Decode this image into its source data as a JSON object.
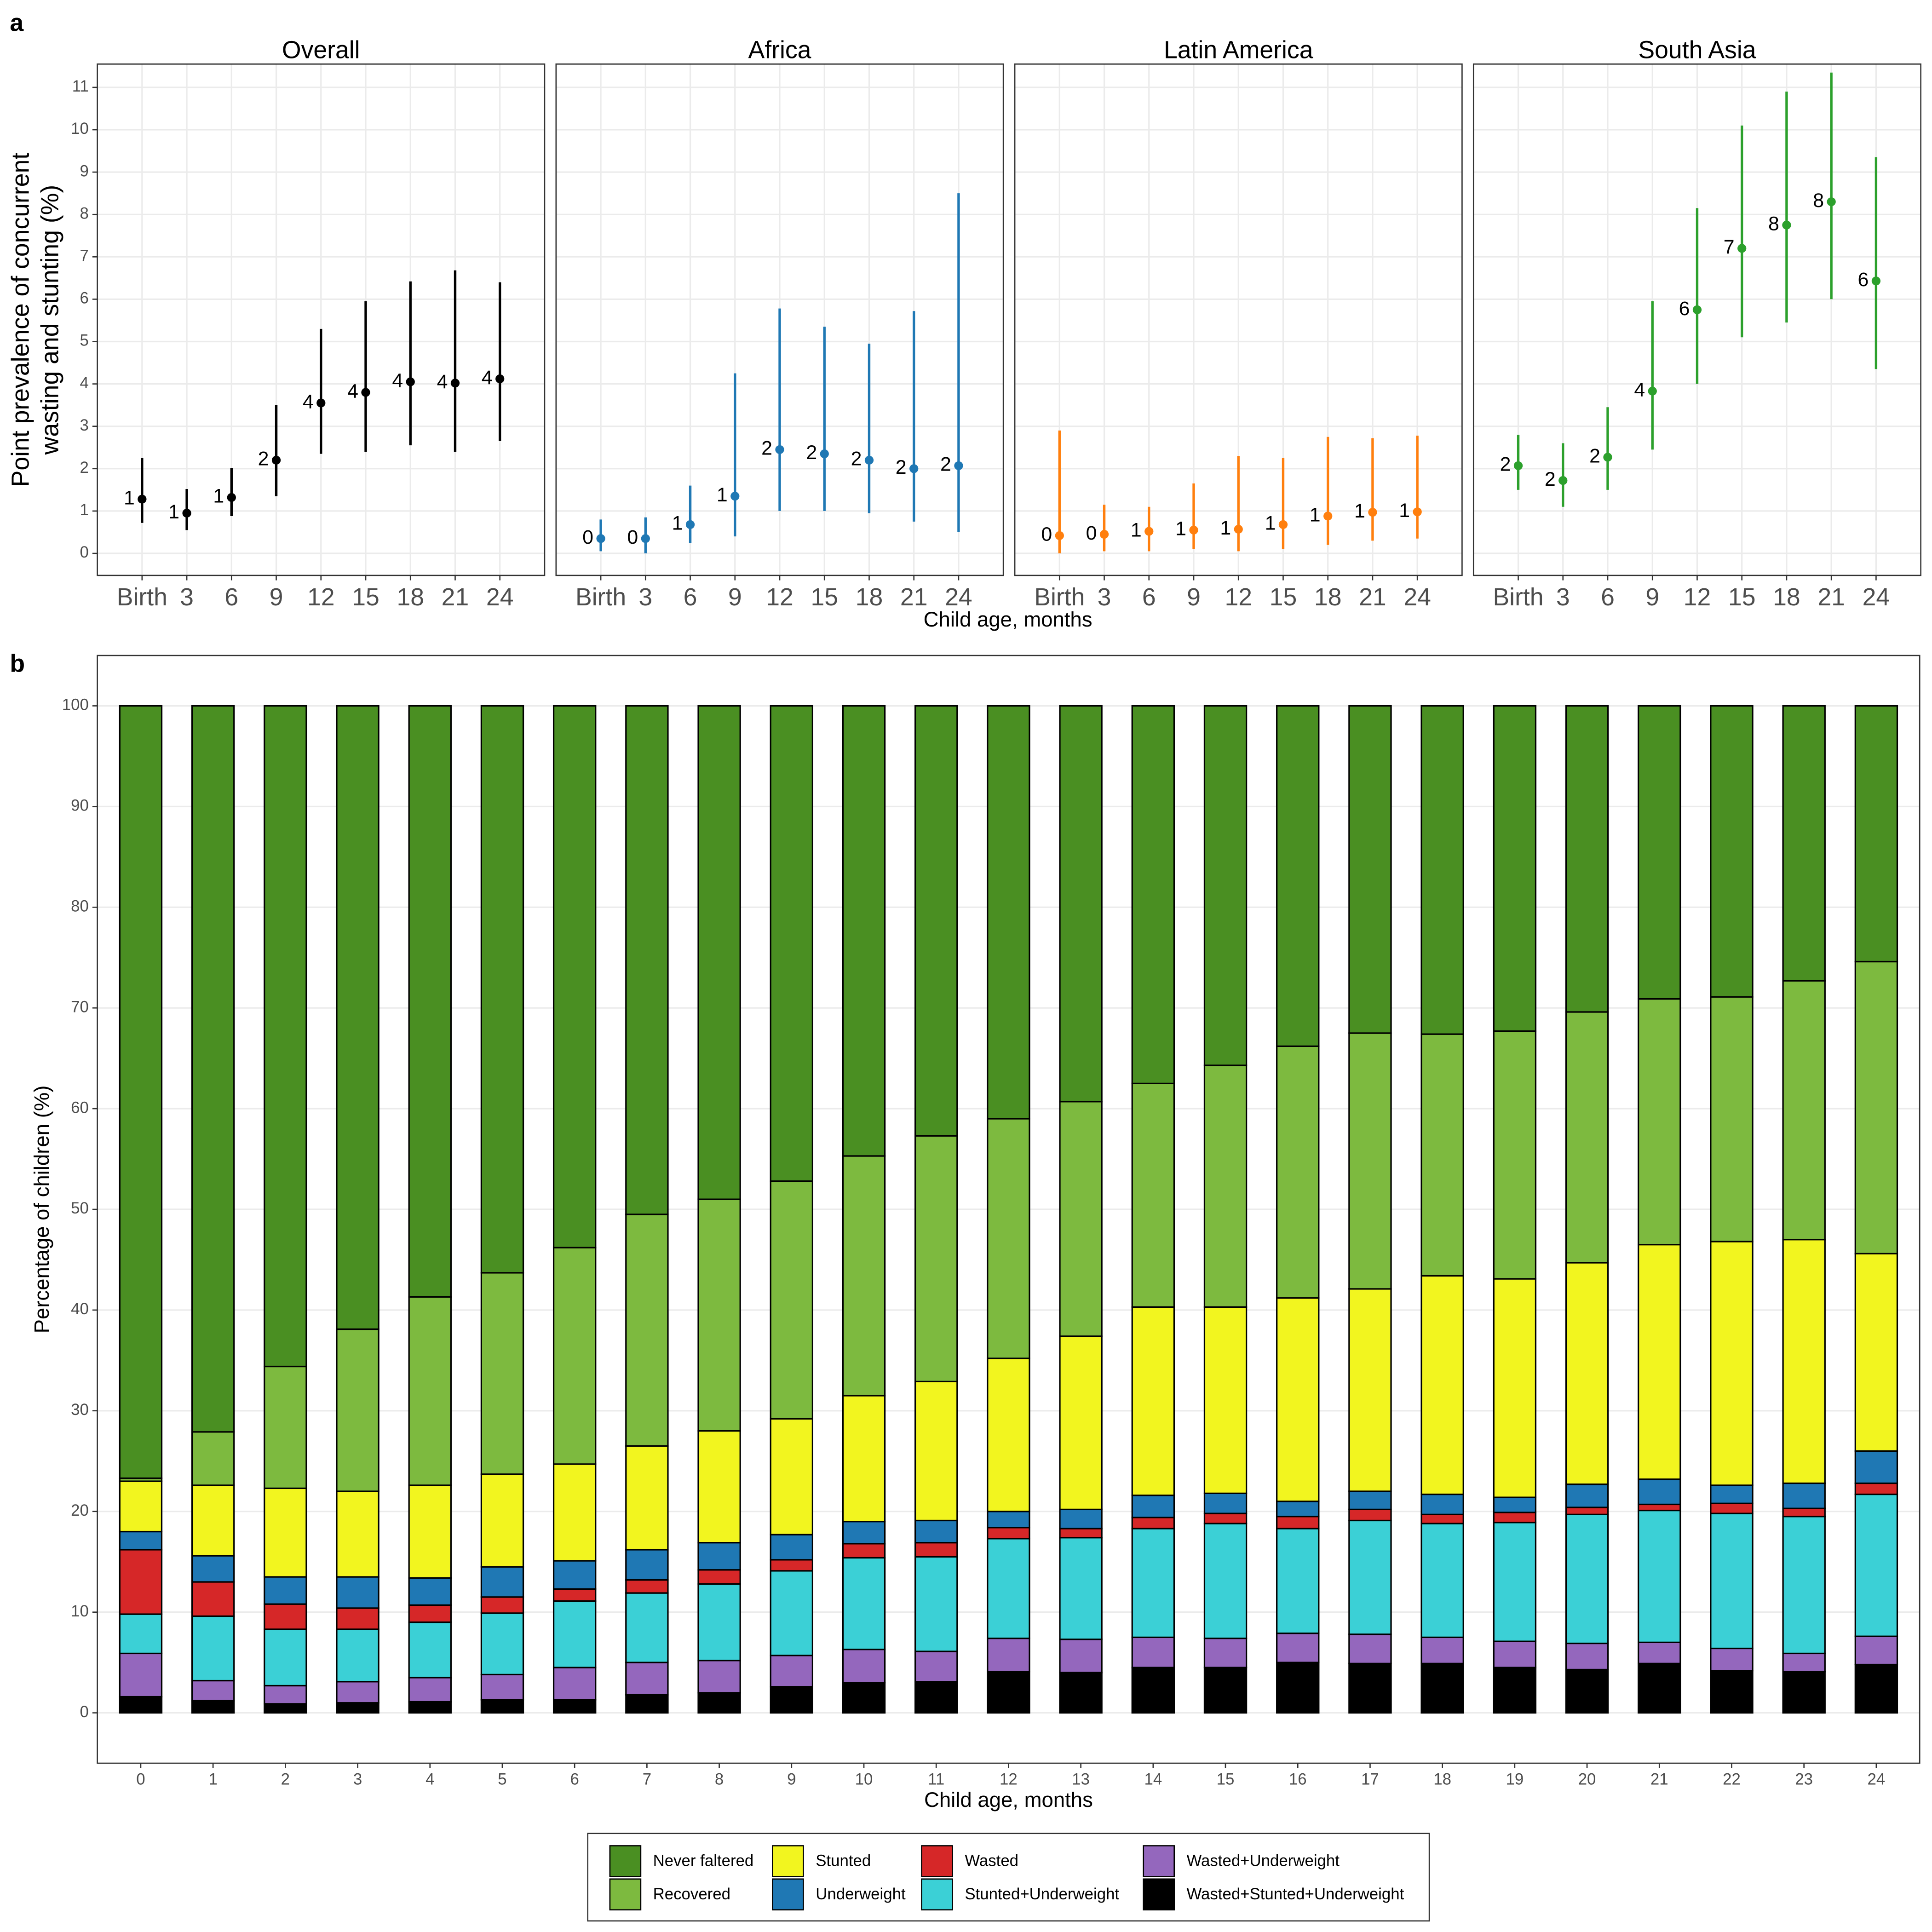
{
  "chart_data": [
    {
      "type": "pointrange",
      "tag": "a",
      "title": "Overall",
      "color": "#000000",
      "xlabel": "Child age, months",
      "ylabel": [
        "Point prevalence of concurrent",
        "wasting and stunting (%)"
      ],
      "x": [
        0,
        3,
        6,
        9,
        12,
        15,
        18,
        21,
        24
      ],
      "values": [
        1.28,
        0.95,
        1.32,
        2.2,
        3.55,
        3.8,
        4.05,
        4.02,
        4.12
      ],
      "lower": [
        0.72,
        0.55,
        0.88,
        1.35,
        2.35,
        2.4,
        2.55,
        2.4,
        2.65
      ],
      "upper": [
        2.25,
        1.52,
        2.02,
        3.5,
        5.3,
        5.95,
        6.42,
        6.68,
        6.4
      ],
      "value_labels": [
        "1",
        "1",
        "1",
        "2",
        "4",
        "4",
        "4",
        "4",
        "4"
      ],
      "xlim": [
        -3,
        27
      ],
      "ylim": [
        -0.52,
        11.55
      ],
      "xticks": [
        {
          "value": 0,
          "label": "Birth"
        },
        3,
        6,
        9,
        12,
        15,
        18,
        21,
        24
      ],
      "yticks": [
        0,
        1,
        2,
        3,
        4,
        5,
        6,
        7,
        8,
        9,
        10,
        11
      ],
      "grid": true
    },
    {
      "type": "pointrange",
      "title": "Africa",
      "color": "#1f78b4",
      "x": [
        0,
        3,
        6,
        9,
        12,
        15,
        18,
        21,
        24
      ],
      "values": [
        0.35,
        0.35,
        0.68,
        1.35,
        2.45,
        2.35,
        2.2,
        2.0,
        2.07
      ],
      "lower": [
        0.05,
        0.0,
        0.25,
        0.4,
        1.0,
        1.0,
        0.95,
        0.75,
        0.5
      ],
      "upper": [
        0.8,
        0.85,
        1.6,
        4.25,
        5.78,
        5.35,
        4.95,
        5.72,
        8.5
      ],
      "value_labels": [
        "0",
        "0",
        "1",
        "1",
        "2",
        "2",
        "2",
        "2",
        "2"
      ],
      "xlim": [
        -3,
        27
      ],
      "ylim": [
        -0.52,
        11.55
      ],
      "xticks": [
        {
          "value": 0,
          "label": "Birth"
        },
        3,
        6,
        9,
        12,
        15,
        18,
        21,
        24
      ],
      "yticks": [
        0,
        1,
        2,
        3,
        4,
        5,
        6,
        7,
        8,
        9,
        10,
        11
      ],
      "grid": true
    },
    {
      "type": "pointrange",
      "title": "Latin America",
      "color": "#ff7f0e",
      "x": [
        0,
        3,
        6,
        9,
        12,
        15,
        18,
        21,
        24
      ],
      "values": [
        0.42,
        0.45,
        0.52,
        0.55,
        0.57,
        0.68,
        0.88,
        0.97,
        0.98
      ],
      "lower": [
        0.0,
        0.05,
        0.05,
        0.1,
        0.05,
        0.1,
        0.2,
        0.3,
        0.35
      ],
      "upper": [
        2.9,
        1.15,
        1.1,
        1.65,
        2.3,
        2.25,
        2.75,
        2.72,
        2.78
      ],
      "value_labels": [
        "0",
        "0",
        "1",
        "1",
        "1",
        "1",
        "1",
        "1",
        "1"
      ],
      "xlim": [
        -3,
        27
      ],
      "ylim": [
        -0.52,
        11.55
      ],
      "xticks": [
        {
          "value": 0,
          "label": "Birth"
        },
        3,
        6,
        9,
        12,
        15,
        18,
        21,
        24
      ],
      "yticks": [
        0,
        1,
        2,
        3,
        4,
        5,
        6,
        7,
        8,
        9,
        10,
        11
      ],
      "grid": true
    },
    {
      "type": "pointrange",
      "title": "South Asia",
      "color": "#2ca02c",
      "x": [
        0,
        3,
        6,
        9,
        12,
        15,
        18,
        21,
        24
      ],
      "values": [
        2.07,
        1.72,
        2.27,
        3.83,
        5.75,
        7.2,
        7.75,
        8.3,
        6.43
      ],
      "lower": [
        1.5,
        1.1,
        1.5,
        2.45,
        4.0,
        5.1,
        5.45,
        6.0,
        4.35
      ],
      "upper": [
        2.8,
        2.6,
        3.45,
        5.95,
        8.15,
        10.1,
        10.9,
        11.35,
        9.35
      ],
      "value_labels": [
        "2",
        "2",
        "2",
        "4",
        "6",
        "7",
        "8",
        "8",
        "6"
      ],
      "xlim": [
        -3,
        27
      ],
      "ylim": [
        -0.52,
        11.55
      ],
      "xticks": [
        {
          "value": 0,
          "label": "Birth"
        },
        3,
        6,
        9,
        12,
        15,
        18,
        21,
        24
      ],
      "yticks": [
        0,
        1,
        2,
        3,
        4,
        5,
        6,
        7,
        8,
        9,
        10,
        11
      ],
      "grid": true
    },
    {
      "type": "stacked_bar",
      "tag": "b",
      "xlabel": "Child age, months",
      "ylabel": "Percentage of children (%)",
      "categories": [
        "0",
        "1",
        "2",
        "3",
        "4",
        "5",
        "6",
        "7",
        "8",
        "9",
        "10",
        "11",
        "12",
        "13",
        "14",
        "15",
        "16",
        "17",
        "18",
        "19",
        "20",
        "21",
        "22",
        "23",
        "24"
      ],
      "ylim": [
        -5,
        105
      ],
      "yticks": [
        0,
        10,
        20,
        30,
        40,
        50,
        60,
        70,
        80,
        90,
        100
      ],
      "grid": true,
      "series": [
        {
          "name": "Wasted+Stunted+Underweight",
          "color": "#000000",
          "values": [
            1.6,
            1.2,
            0.9,
            1.0,
            1.1,
            1.3,
            1.3,
            1.8,
            2.0,
            2.6,
            3.0,
            3.1,
            4.1,
            4.0,
            4.5,
            4.5,
            5.0,
            4.9,
            4.9,
            4.5,
            4.3,
            4.9,
            4.2,
            4.1,
            4.8
          ]
        },
        {
          "name": "Wasted+Underweight",
          "color": "#9467bd",
          "values": [
            4.3,
            2.0,
            1.8,
            2.1,
            2.4,
            2.5,
            3.2,
            3.2,
            3.2,
            3.1,
            3.3,
            3.0,
            3.3,
            3.3,
            3.0,
            2.9,
            2.9,
            2.9,
            2.6,
            2.6,
            2.6,
            2.1,
            2.2,
            1.8,
            2.8
          ]
        },
        {
          "name": "Stunted+Underweight",
          "color": "#3bd0d6",
          "values": [
            3.9,
            6.4,
            5.6,
            5.2,
            5.5,
            6.1,
            6.6,
            6.9,
            7.6,
            8.4,
            9.1,
            9.4,
            9.9,
            10.1,
            10.8,
            11.4,
            10.4,
            11.3,
            11.3,
            11.8,
            12.8,
            13.1,
            13.4,
            13.6,
            14.1
          ]
        },
        {
          "name": "Wasted",
          "color": "#d62728",
          "values": [
            6.4,
            3.4,
            2.5,
            2.1,
            1.7,
            1.6,
            1.2,
            1.3,
            1.4,
            1.1,
            1.4,
            1.4,
            1.1,
            0.9,
            1.1,
            1.0,
            1.2,
            1.1,
            0.9,
            1.0,
            0.7,
            0.6,
            1.0,
            0.8,
            1.1
          ]
        },
        {
          "name": "Underweight",
          "color": "#1f78b4",
          "values": [
            1.8,
            2.6,
            2.7,
            3.1,
            2.7,
            3.0,
            2.8,
            3.0,
            2.7,
            2.5,
            2.2,
            2.2,
            1.6,
            1.9,
            2.2,
            2.0,
            1.5,
            1.8,
            2.0,
            1.5,
            2.3,
            2.5,
            1.8,
            2.5,
            3.2
          ]
        },
        {
          "name": "Stunted",
          "color": "#f2f51f",
          "values": [
            5.0,
            7.0,
            8.8,
            8.5,
            9.2,
            9.2,
            9.6,
            10.3,
            11.1,
            11.5,
            12.5,
            13.8,
            15.2,
            17.2,
            18.7,
            18.5,
            20.2,
            20.1,
            21.7,
            21.7,
            22.0,
            23.3,
            24.2,
            24.2,
            19.6
          ]
        },
        {
          "name": "Recovered",
          "color": "#7dba3f",
          "values": [
            0.3,
            5.3,
            12.1,
            16.1,
            18.7,
            20.0,
            21.5,
            23.0,
            23.0,
            23.6,
            23.8,
            24.4,
            23.8,
            23.3,
            22.2,
            24.0,
            25.0,
            25.4,
            24.0,
            24.6,
            24.9,
            24.4,
            24.3,
            25.7,
            29.0
          ]
        },
        {
          "name": "Never faltered",
          "color": "#4a8f22",
          "values": [
            76.7,
            72.1,
            65.6,
            61.9,
            58.7,
            56.3,
            53.8,
            50.5,
            49.0,
            47.2,
            44.7,
            42.7,
            41.0,
            39.3,
            37.5,
            35.7,
            33.8,
            32.5,
            32.6,
            32.3,
            30.4,
            29.1,
            28.9,
            27.3,
            25.4
          ]
        }
      ]
    }
  ]
}
